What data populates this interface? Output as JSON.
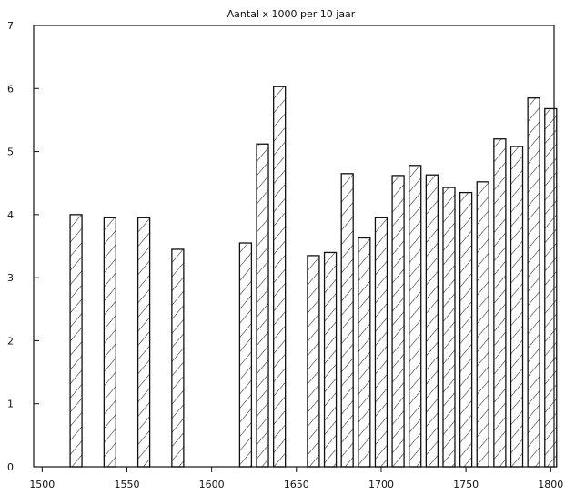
{
  "chart_data": {
    "type": "bar",
    "title": "Aantal x 1000 per 10 jaar",
    "xlabel": "",
    "ylabel": "",
    "x": [
      1520,
      1540,
      1560,
      1580,
      1620,
      1630,
      1640,
      1660,
      1670,
      1680,
      1690,
      1700,
      1710,
      1720,
      1730,
      1740,
      1750,
      1760,
      1770,
      1780,
      1790,
      1800
    ],
    "values": [
      4.0,
      3.95,
      3.95,
      3.45,
      3.55,
      5.12,
      6.03,
      3.35,
      3.4,
      4.65,
      3.63,
      3.95,
      4.62,
      4.78,
      4.63,
      4.43,
      4.35,
      4.52,
      5.2,
      5.08,
      5.85,
      5.68
    ],
    "xlim": [
      1495,
      1802
    ],
    "ylim": [
      0,
      7
    ],
    "xticks": [
      1500,
      1550,
      1600,
      1650,
      1700,
      1750,
      1800
    ],
    "yticks": [
      0,
      1,
      2,
      3,
      4,
      5,
      6,
      7
    ],
    "bar_fill": "hatched-diagonal",
    "grid": false,
    "legend": "none"
  }
}
